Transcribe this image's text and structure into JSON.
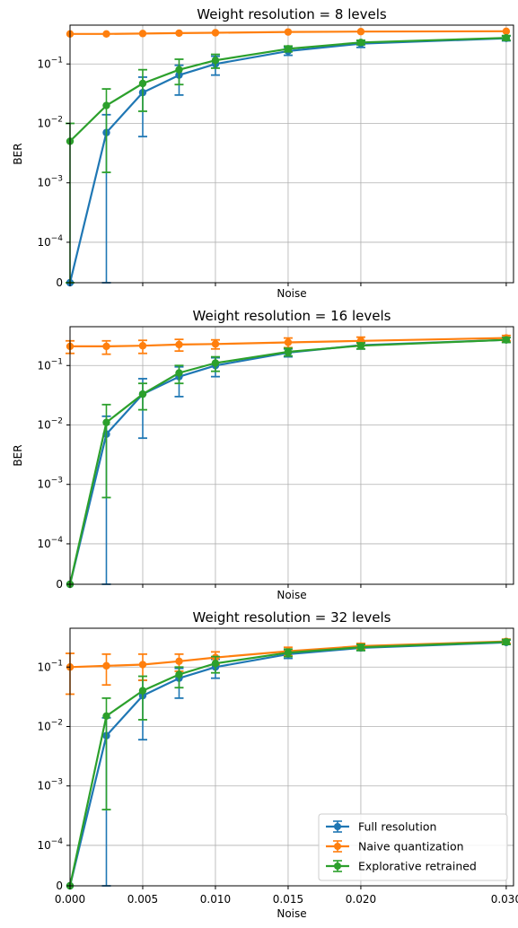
{
  "chart_data": [
    {
      "type": "line",
      "title": "Weight resolution = 8 levels",
      "xlabel": "Noise",
      "ylabel": "BER",
      "yscale": "symlog",
      "xlim": [
        0,
        0.0305
      ],
      "ylim": [
        0,
        0.45
      ],
      "xticks": [
        0,
        0.005,
        0.01,
        0.015,
        0.02,
        0.03
      ],
      "xtick_labels_visible": false,
      "yticks": [
        {
          "value": 0,
          "base": "0",
          "exp": ""
        },
        {
          "value": 0.0001,
          "base": "10",
          "exp": "−4"
        },
        {
          "value": 0.001,
          "base": "10",
          "exp": "−3"
        },
        {
          "value": 0.01,
          "base": "10",
          "exp": "−2"
        },
        {
          "value": 0.1,
          "base": "10",
          "exp": "−1"
        }
      ],
      "grid": true,
      "x": [
        0,
        0.0025,
        0.005,
        0.0075,
        0.01,
        0.015,
        0.02,
        0.03
      ],
      "series": [
        {
          "name": "Full resolution",
          "color": "#1f77b4",
          "values": [
            0,
            0.007,
            0.033,
            0.065,
            0.1,
            0.165,
            0.22,
            0.27
          ],
          "lower": [
            0,
            0,
            0.006,
            0.03,
            0.065,
            0.14,
            0.19,
            0.245
          ],
          "upper": [
            0,
            0.014,
            0.06,
            0.095,
            0.135,
            0.19,
            0.245,
            0.295
          ]
        },
        {
          "name": "Naive quantization",
          "color": "#ff7f0e",
          "values": [
            0.32,
            0.32,
            0.325,
            0.33,
            0.335,
            0.345,
            0.35,
            0.355
          ],
          "lower": [
            0.3,
            0.3,
            0.31,
            0.31,
            0.32,
            0.33,
            0.34,
            0.345
          ],
          "upper": [
            0.34,
            0.34,
            0.345,
            0.35,
            0.35,
            0.36,
            0.36,
            0.365
          ],
          "cap": false
        },
        {
          "name": "Explorative retrained",
          "color": "#2ca02c",
          "values": [
            0.005,
            0.02,
            0.047,
            0.08,
            0.115,
            0.18,
            0.23,
            0.275
          ],
          "lower": [
            0,
            0.0015,
            0.016,
            0.045,
            0.085,
            0.16,
            0.21,
            0.25
          ],
          "upper": [
            0.01,
            0.038,
            0.08,
            0.12,
            0.145,
            0.2,
            0.25,
            0.3
          ]
        }
      ]
    },
    {
      "type": "line",
      "title": "Weight resolution = 16 levels",
      "xlabel": "Noise",
      "ylabel": "BER",
      "yscale": "symlog",
      "xlim": [
        0,
        0.0305
      ],
      "ylim": [
        0,
        0.45
      ],
      "xticks": [
        0,
        0.005,
        0.01,
        0.015,
        0.02,
        0.03
      ],
      "xtick_labels_visible": false,
      "yticks": [
        {
          "value": 0,
          "base": "0",
          "exp": ""
        },
        {
          "value": 0.0001,
          "base": "10",
          "exp": "−4"
        },
        {
          "value": 0.001,
          "base": "10",
          "exp": "−3"
        },
        {
          "value": 0.01,
          "base": "10",
          "exp": "−2"
        },
        {
          "value": 0.1,
          "base": "10",
          "exp": "−1"
        }
      ],
      "grid": true,
      "x": [
        0,
        0.0025,
        0.005,
        0.0075,
        0.01,
        0.015,
        0.02,
        0.03
      ],
      "series": [
        {
          "name": "Full resolution",
          "color": "#1f77b4",
          "values": [
            0,
            0.007,
            0.033,
            0.065,
            0.1,
            0.165,
            0.22,
            0.27
          ],
          "lower": [
            0,
            0,
            0.006,
            0.03,
            0.065,
            0.14,
            0.19,
            0.245
          ],
          "upper": [
            0,
            0.014,
            0.06,
            0.095,
            0.135,
            0.19,
            0.245,
            0.295
          ]
        },
        {
          "name": "Naive quantization",
          "color": "#ff7f0e",
          "values": [
            0.21,
            0.21,
            0.215,
            0.225,
            0.23,
            0.245,
            0.26,
            0.29
          ],
          "lower": [
            0.16,
            0.155,
            0.16,
            0.175,
            0.19,
            0.2,
            0.22,
            0.26
          ],
          "upper": [
            0.26,
            0.26,
            0.265,
            0.275,
            0.27,
            0.29,
            0.3,
            0.32
          ]
        },
        {
          "name": "Explorative retrained",
          "color": "#2ca02c",
          "values": [
            0,
            0.011,
            0.033,
            0.075,
            0.11,
            0.17,
            0.215,
            0.27
          ],
          "lower": [
            0,
            0.0006,
            0.018,
            0.05,
            0.08,
            0.145,
            0.19,
            0.245
          ],
          "upper": [
            0,
            0.022,
            0.05,
            0.1,
            0.14,
            0.195,
            0.24,
            0.295
          ]
        }
      ]
    },
    {
      "type": "line",
      "title": "Weight resolution = 32 levels",
      "xlabel": "Noise",
      "ylabel": "",
      "yscale": "symlog",
      "xlim": [
        0,
        0.0305
      ],
      "ylim": [
        0,
        0.45
      ],
      "xticks": [
        0,
        0.005,
        0.01,
        0.015,
        0.02,
        0.03
      ],
      "xtick_labels": [
        "0.000",
        "0.005",
        "0.010",
        "0.015",
        "0.020",
        "0.030"
      ],
      "xtick_labels_visible": true,
      "yticks": [
        {
          "value": 0,
          "base": "0",
          "exp": ""
        },
        {
          "value": 0.0001,
          "base": "10",
          "exp": "−4"
        },
        {
          "value": 0.001,
          "base": "10",
          "exp": "−3"
        },
        {
          "value": 0.01,
          "base": "10",
          "exp": "−2"
        },
        {
          "value": 0.1,
          "base": "10",
          "exp": "−1"
        }
      ],
      "grid": true,
      "legend": {
        "position": "lower right",
        "entries": [
          "Full resolution",
          "Naive quantization",
          "Explorative retrained"
        ]
      },
      "x": [
        0,
        0.0025,
        0.005,
        0.0075,
        0.01,
        0.015,
        0.02,
        0.03
      ],
      "series": [
        {
          "name": "Full resolution",
          "color": "#1f77b4",
          "values": [
            0,
            0.007,
            0.033,
            0.065,
            0.1,
            0.165,
            0.21,
            0.26
          ],
          "lower": [
            0,
            0,
            0.006,
            0.03,
            0.065,
            0.14,
            0.19,
            0.24
          ],
          "upper": [
            0,
            0.014,
            0.06,
            0.095,
            0.135,
            0.19,
            0.235,
            0.285
          ]
        },
        {
          "name": "Naive quantization",
          "color": "#ff7f0e",
          "values": [
            0.1,
            0.105,
            0.11,
            0.125,
            0.145,
            0.185,
            0.225,
            0.27
          ],
          "lower": [
            0.035,
            0.05,
            0.06,
            0.085,
            0.11,
            0.155,
            0.2,
            0.25
          ],
          "upper": [
            0.17,
            0.165,
            0.165,
            0.165,
            0.18,
            0.215,
            0.25,
            0.295
          ]
        },
        {
          "name": "Explorative retrained",
          "color": "#2ca02c",
          "values": [
            0,
            0.015,
            0.04,
            0.075,
            0.115,
            0.175,
            0.215,
            0.265
          ],
          "lower": [
            0,
            0.0004,
            0.013,
            0.045,
            0.08,
            0.15,
            0.19,
            0.24
          ],
          "upper": [
            0,
            0.03,
            0.07,
            0.1,
            0.15,
            0.2,
            0.24,
            0.29
          ]
        }
      ]
    }
  ]
}
